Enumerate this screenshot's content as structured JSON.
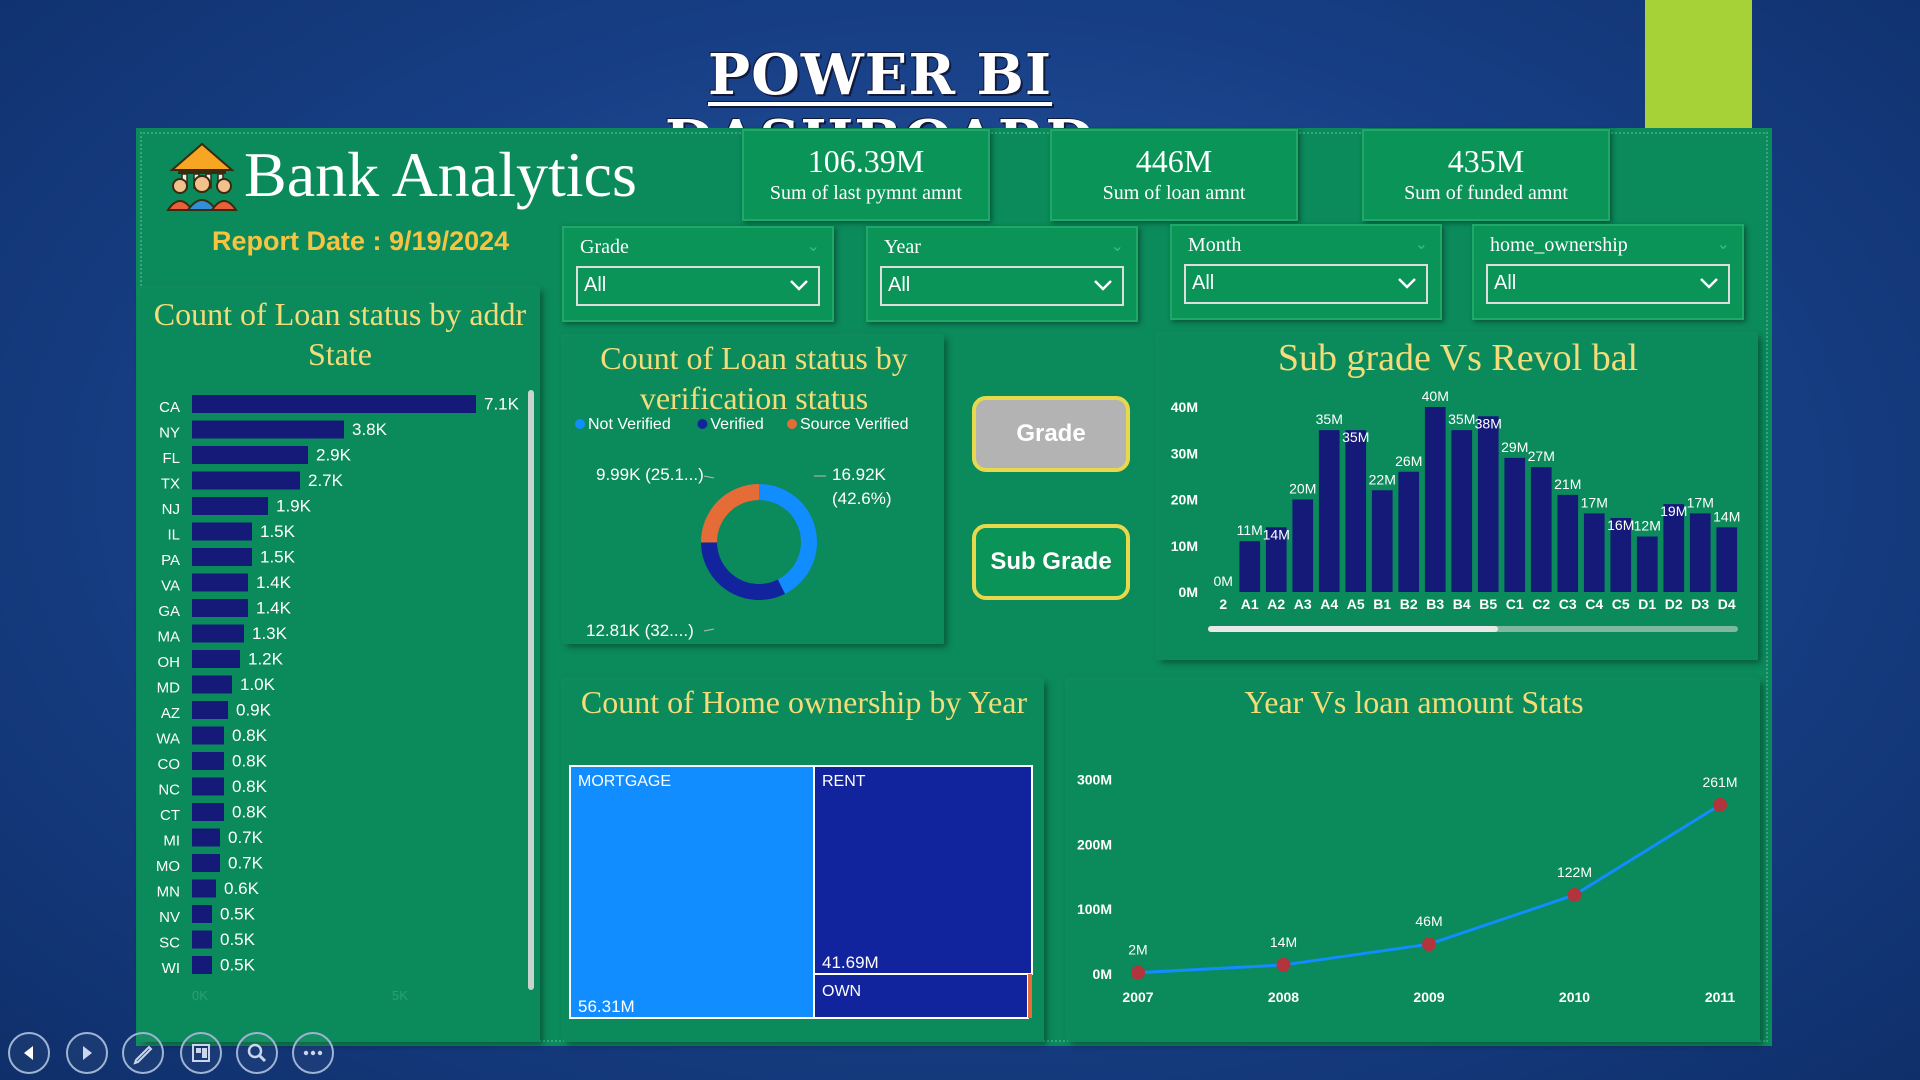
{
  "page_title": "POWER BI DASHBOARD",
  "brand": {
    "name": "Bank Analytics",
    "report_date": "Report Date : 9/19/2024",
    "logo_icon": "bank-people-icon"
  },
  "kpis": [
    {
      "value": "106.39M",
      "label": "Sum of last pymnt amnt"
    },
    {
      "value": "446M",
      "label": "Sum of loan amnt"
    },
    {
      "value": "435M",
      "label": "Sum of funded amnt"
    }
  ],
  "slicers": [
    {
      "label": "Grade",
      "value": "All"
    },
    {
      "label": "Year",
      "value": "All"
    },
    {
      "label": "Month",
      "value": "All"
    },
    {
      "label": "home_ownership",
      "value": "All"
    }
  ],
  "buttons": {
    "grade": "Grade",
    "sub_grade": "Sub Grade"
  },
  "colors": {
    "accent_green": "#a6d137",
    "dash_bg": "#0b8a5c",
    "bar_navy": "#151a78",
    "title_gold": "#f3dc79",
    "report_gold": "#f6c440",
    "light_blue": "#118dff",
    "orange": "#e66c37",
    "marker_red": "#b2343c"
  },
  "chart_data": [
    {
      "type": "bar",
      "orientation": "horizontal",
      "title": "Count of Loan status by addr State",
      "categories": [
        "CA",
        "NY",
        "FL",
        "TX",
        "NJ",
        "IL",
        "PA",
        "VA",
        "GA",
        "MA",
        "OH",
        "MD",
        "AZ",
        "WA",
        "CO",
        "NC",
        "CT",
        "MI",
        "MO",
        "MN",
        "NV",
        "SC",
        "WI"
      ],
      "values": [
        7.1,
        3.8,
        2.9,
        2.7,
        1.9,
        1.5,
        1.5,
        1.4,
        1.4,
        1.3,
        1.2,
        1.0,
        0.9,
        0.8,
        0.8,
        0.8,
        0.8,
        0.7,
        0.7,
        0.6,
        0.5,
        0.5,
        0.5
      ],
      "labels": [
        "7.1K",
        "3.8K",
        "2.9K",
        "2.7K",
        "1.9K",
        "1.5K",
        "1.5K",
        "1.4K",
        "1.4K",
        "1.3K",
        "1.2K",
        "1.0K",
        "0.9K",
        "0.8K",
        "0.8K",
        "0.8K",
        "0.8K",
        "0.7K",
        "0.7K",
        "0.6K",
        "0.5K",
        "0.5K",
        "0.5K"
      ],
      "xticks": [
        "0K",
        "5K"
      ],
      "xlim": [
        0,
        7.5
      ]
    },
    {
      "type": "pie",
      "title": "Count of Loan status by verification status",
      "legend": [
        "Not Verified",
        "Verified",
        "Source Verified"
      ],
      "values": [
        16.92,
        12.81,
        9.99
      ],
      "labels": [
        "16.92K (42.6%)",
        "12.81K (32....)",
        "9.99K (25.1...)"
      ],
      "colors": [
        "#118dff",
        "#12239e",
        "#e66c37"
      ]
    },
    {
      "type": "bar",
      "title": "Sub grade Vs Revol bal",
      "categories": [
        "2",
        "A1",
        "A2",
        "A3",
        "A4",
        "A5",
        "B1",
        "B2",
        "B3",
        "B4",
        "B5",
        "C1",
        "C2",
        "C3",
        "C4",
        "C5",
        "D1",
        "D2",
        "D3",
        "D4"
      ],
      "values": [
        0,
        11,
        14,
        20,
        35,
        35,
        22,
        26,
        40,
        35,
        38,
        29,
        27,
        21,
        17,
        16,
        12,
        19,
        17,
        14
      ],
      "labels": [
        "0M",
        "11M",
        "14M",
        "20M",
        "35M",
        "35M",
        "22M",
        "26M",
        "40M",
        "35M",
        "38M",
        "29M",
        "27M",
        "21M",
        "17M",
        "16M",
        "12M",
        "19M",
        "17M",
        "14M"
      ],
      "yticks": [
        "0M",
        "10M",
        "20M",
        "30M",
        "40M"
      ],
      "ylim": [
        0,
        40
      ]
    },
    {
      "type": "heatmap",
      "title": "Count of Home ownership by Year",
      "items": [
        {
          "name": "MORTGAGE",
          "value": 56.31,
          "label": "56.31M"
        },
        {
          "name": "RENT",
          "value": 41.69,
          "label": "41.69M"
        },
        {
          "name": "OWN",
          "value": 8.0,
          "label": ""
        }
      ]
    },
    {
      "type": "line",
      "title": "Year Vs loan amount Stats",
      "x": [
        "2007",
        "2008",
        "2009",
        "2010",
        "2011"
      ],
      "values": [
        2,
        14,
        46,
        122,
        261
      ],
      "labels": [
        "2M",
        "14M",
        "46M",
        "122M",
        "261M"
      ],
      "yticks": [
        "0M",
        "100M",
        "200M",
        "300M"
      ],
      "ylim": [
        0,
        300
      ]
    }
  ],
  "nav": [
    {
      "icon": "prev-icon"
    },
    {
      "icon": "next-icon"
    },
    {
      "icon": "pen-icon"
    },
    {
      "icon": "slides-icon"
    },
    {
      "icon": "zoom-icon"
    },
    {
      "icon": "more-icon"
    }
  ]
}
